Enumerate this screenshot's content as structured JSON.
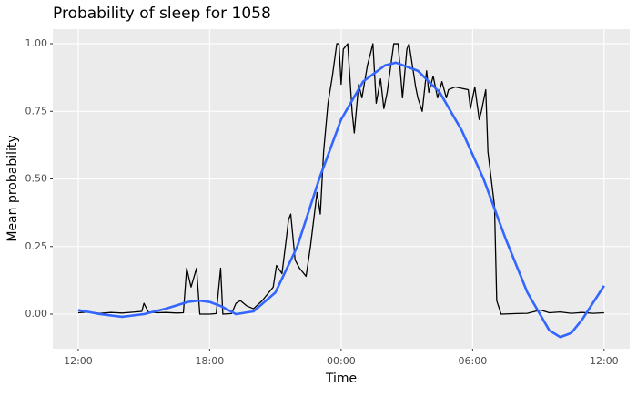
{
  "chart_data": {
    "type": "line",
    "title": "Probability of sleep for 1058",
    "x_label": "Time",
    "y_label": "Mean probability",
    "xlim": [
      -1.16,
      25.17
    ],
    "ylim": [
      -0.128,
      1.054
    ],
    "xticks": [
      {
        "value": 0,
        "label": "12:00"
      },
      {
        "value": 6,
        "label": "18:00"
      },
      {
        "value": 12,
        "label": "00:00"
      },
      {
        "value": 18,
        "label": "06:00"
      },
      {
        "value": 24,
        "label": "12:00"
      }
    ],
    "yticks": [
      {
        "value": 0,
        "label": "0.00"
      },
      {
        "value": 0.25,
        "label": "0.25"
      },
      {
        "value": 0.5,
        "label": "0.50"
      },
      {
        "value": 0.75,
        "label": "0.75"
      },
      {
        "value": 1,
        "label": "1.00"
      }
    ],
    "grid": true,
    "series": [
      {
        "color": "#000000",
        "x": [
          0,
          0.5,
          1,
          1.5,
          2,
          2.5,
          2.9,
          3,
          3.2,
          3.6,
          4,
          4.5,
          4.8,
          4.95,
          5.15,
          5.4,
          5.55,
          6,
          6.3,
          6.5,
          6.6,
          7,
          7.2,
          7.4,
          7.7,
          8,
          8.4,
          8.9,
          9.05,
          9.3,
          9.5,
          9.6,
          9.7,
          9.9,
          10.1,
          10.4,
          10.6,
          10.9,
          11.05,
          11.2,
          11.4,
          11.6,
          11.8,
          11.9,
          12,
          12.1,
          12.3,
          12.5,
          12.6,
          12.8,
          12.95,
          13.2,
          13.45,
          13.6,
          13.8,
          13.95,
          14.1,
          14.4,
          14.6,
          14.8,
          15,
          15.1,
          15.4,
          15.5,
          15.7,
          15.9,
          16,
          16.2,
          16.4,
          16.6,
          16.8,
          16.9,
          17.2,
          17.8,
          17.9,
          18.1,
          18.3,
          18.4,
          18.6,
          18.7,
          18.85,
          19,
          19.1,
          19.3,
          20,
          20.5,
          21.1,
          21.5,
          22,
          22.5,
          23,
          23.5,
          24
        ],
        "values": [
          0.005,
          0.008,
          0.003,
          0.006,
          0.004,
          0.007,
          0.01,
          0.04,
          0.008,
          0.005,
          0.006,
          0.004,
          0.005,
          0.17,
          0.1,
          0.17,
          0.0,
          0.0,
          0.002,
          0.17,
          0.0,
          0.002,
          0.04,
          0.05,
          0.03,
          0.02,
          0.05,
          0.1,
          0.18,
          0.15,
          0.28,
          0.35,
          0.37,
          0.2,
          0.17,
          0.14,
          0.25,
          0.45,
          0.37,
          0.6,
          0.78,
          0.88,
          1.0,
          1.0,
          0.85,
          0.98,
          1.0,
          0.75,
          0.67,
          0.85,
          0.8,
          0.92,
          1.0,
          0.78,
          0.87,
          0.76,
          0.82,
          1.0,
          1.0,
          0.8,
          0.98,
          1.0,
          0.84,
          0.8,
          0.75,
          0.9,
          0.82,
          0.88,
          0.8,
          0.86,
          0.8,
          0.83,
          0.84,
          0.83,
          0.76,
          0.84,
          0.72,
          0.75,
          0.83,
          0.6,
          0.5,
          0.4,
          0.05,
          0.0,
          0.002,
          0.003,
          0.015,
          0.005,
          0.008,
          0.003,
          0.006,
          0.003,
          0.005
        ]
      },
      {
        "color": "#3366ff",
        "x": [
          0,
          1,
          2,
          3,
          4,
          5,
          5.5,
          6,
          6.5,
          7.2,
          8,
          9,
          10,
          11,
          12,
          13,
          14,
          14.5,
          15.5,
          16.5,
          17.5,
          18.5,
          19.5,
          20.5,
          21.5,
          22,
          22.5,
          23,
          24
        ],
        "values": [
          0.015,
          0.0,
          -0.01,
          0.0,
          0.02,
          0.045,
          0.05,
          0.045,
          0.03,
          0.0,
          0.01,
          0.08,
          0.25,
          0.5,
          0.72,
          0.86,
          0.92,
          0.93,
          0.9,
          0.82,
          0.68,
          0.5,
          0.28,
          0.08,
          -0.06,
          -0.085,
          -0.07,
          -0.02,
          0.105
        ]
      }
    ]
  }
}
